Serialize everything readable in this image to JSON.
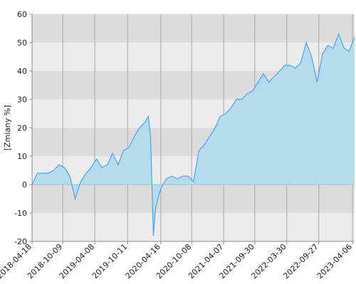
{
  "chart_data": {
    "type": "area",
    "ylabel": "[Zmiany %]",
    "x": [
      "2018-04-18",
      "2018-05-18",
      "2018-06-18",
      "2018-07-18",
      "2018-08-18",
      "2018-09-18",
      "2018-10-18",
      "2018-11-18",
      "2018-12-18",
      "2019-01-18",
      "2019-02-18",
      "2019-03-18",
      "2019-04-18",
      "2019-05-18",
      "2019-06-18",
      "2019-07-18",
      "2019-08-18",
      "2019-09-18",
      "2019-10-18",
      "2019-11-18",
      "2019-12-18",
      "2020-01-18",
      "2020-02-05",
      "2020-02-18",
      "2020-03-05",
      "2020-03-18",
      "2020-04-18",
      "2020-05-18",
      "2020-06-18",
      "2020-07-18",
      "2020-08-18",
      "2020-09-18",
      "2020-10-18",
      "2020-11-18",
      "2020-12-18",
      "2021-01-18",
      "2021-02-18",
      "2021-03-18",
      "2021-04-18",
      "2021-05-18",
      "2021-06-18",
      "2021-07-18",
      "2021-08-18",
      "2021-09-18",
      "2021-10-18",
      "2021-11-18",
      "2021-12-18",
      "2022-01-18",
      "2022-02-18",
      "2022-03-18",
      "2022-04-18",
      "2022-05-18",
      "2022-06-18",
      "2022-07-18",
      "2022-08-18",
      "2022-09-18",
      "2022-10-18",
      "2022-11-18",
      "2022-12-18",
      "2023-01-18",
      "2023-02-18",
      "2023-03-18",
      "2023-04-18"
    ],
    "values": [
      0,
      4,
      4,
      4,
      5,
      7,
      6,
      3,
      -5,
      1,
      4,
      6,
      9,
      6,
      7,
      11,
      7,
      12,
      13,
      17,
      20,
      22,
      24,
      17,
      -18,
      -8,
      -1,
      2,
      3,
      2,
      3,
      3,
      1,
      12,
      14,
      17,
      20,
      24,
      25,
      27,
      30,
      30,
      32,
      33,
      36,
      39,
      36,
      38,
      40,
      42,
      42,
      41,
      43,
      50,
      45,
      36,
      46,
      49,
      48,
      53,
      48,
      47,
      52
    ],
    "color": "#4da3f0",
    "fill_color": "#b5dced",
    "xlim": [
      "2018-04-18",
      "2023-04-18"
    ],
    "xticks": [
      "2018-04-18",
      "2018-10-09",
      "2019-04-08",
      "2019-10-11",
      "2020-04-16",
      "2020-10-08",
      "2021-04-07",
      "2021-09-30",
      "2022-03-30",
      "2022-09-27",
      "2023-04-06"
    ],
    "ylim": [
      -20,
      60
    ],
    "yticks": [
      -20,
      -10,
      0,
      10,
      20,
      30,
      40,
      50,
      60
    ],
    "grid": true
  }
}
